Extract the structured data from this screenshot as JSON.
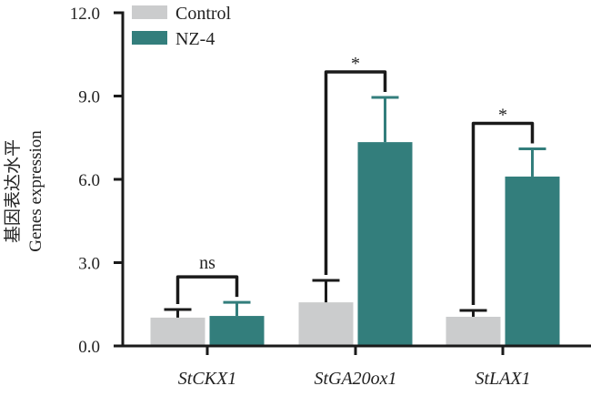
{
  "chart_data": {
    "type": "bar",
    "title": "",
    "xlabel": "",
    "ylabel_lines": [
      "基因表达水平",
      "Genes expression"
    ],
    "ylim": [
      0,
      12
    ],
    "yticks": [
      0,
      3,
      6,
      9,
      12
    ],
    "ytick_labels": [
      "0.0",
      "3.0",
      "6.0",
      "9.0",
      "12.0"
    ],
    "categories": [
      "StCKX1",
      "StGA20ox1",
      "StLAX1"
    ],
    "series": [
      {
        "name": "Control",
        "color": "#cbcccd",
        "values": [
          1.02,
          1.57,
          1.05
        ],
        "errors": [
          0.29,
          0.79,
          0.23
        ]
      },
      {
        "name": "NZ-4",
        "color": "#337e7c",
        "values": [
          1.08,
          7.34,
          6.1
        ],
        "errors": [
          0.49,
          1.61,
          1.0
        ]
      }
    ],
    "significance": [
      {
        "category": "StCKX1",
        "label": "ns"
      },
      {
        "category": "StGA20ox1",
        "label": "*"
      },
      {
        "category": "StLAX1",
        "label": "*"
      }
    ],
    "legend": {
      "position": "top-left",
      "entries": [
        "Control",
        "NZ-4"
      ]
    },
    "grid": false
  }
}
